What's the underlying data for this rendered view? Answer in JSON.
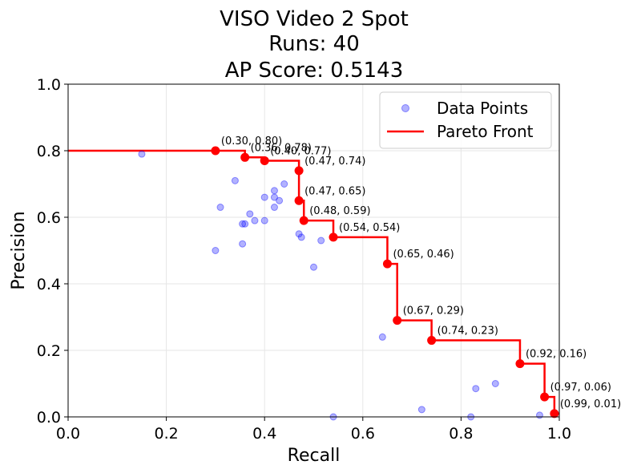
{
  "chart_data": {
    "type": "scatter",
    "title_lines": [
      "VISO Video 2 Spot",
      "Runs: 40",
      "AP Score: 0.5143"
    ],
    "xlabel": "Recall",
    "ylabel": "Precision",
    "xlim": [
      0.0,
      1.0
    ],
    "ylim": [
      0.0,
      1.0
    ],
    "x_ticks": [
      "0.0",
      "0.2",
      "0.4",
      "0.6",
      "0.8",
      "1.0"
    ],
    "y_ticks": [
      "0.0",
      "0.2",
      "0.4",
      "0.6",
      "0.8",
      "1.0"
    ],
    "grid": true,
    "legend_position": "top-right",
    "series": [
      {
        "name": "Data Points",
        "kind": "scatter",
        "color": "#0000ff",
        "points": [
          [
            0.15,
            0.79
          ],
          [
            0.3,
            0.8
          ],
          [
            0.36,
            0.78
          ],
          [
            0.4,
            0.77
          ],
          [
            0.47,
            0.74
          ],
          [
            0.34,
            0.71
          ],
          [
            0.44,
            0.7
          ],
          [
            0.42,
            0.68
          ],
          [
            0.4,
            0.66
          ],
          [
            0.42,
            0.66
          ],
          [
            0.43,
            0.65
          ],
          [
            0.47,
            0.65
          ],
          [
            0.31,
            0.63
          ],
          [
            0.42,
            0.63
          ],
          [
            0.37,
            0.61
          ],
          [
            0.48,
            0.59
          ],
          [
            0.38,
            0.59
          ],
          [
            0.4,
            0.59
          ],
          [
            0.36,
            0.58
          ],
          [
            0.355,
            0.58
          ],
          [
            0.47,
            0.55
          ],
          [
            0.475,
            0.54
          ],
          [
            0.54,
            0.54
          ],
          [
            0.515,
            0.53
          ],
          [
            0.355,
            0.52
          ],
          [
            0.3,
            0.5
          ],
          [
            0.65,
            0.46
          ],
          [
            0.5,
            0.45
          ],
          [
            0.67,
            0.29
          ],
          [
            0.64,
            0.24
          ],
          [
            0.74,
            0.23
          ],
          [
            0.92,
            0.16
          ],
          [
            0.87,
            0.1
          ],
          [
            0.83,
            0.085
          ],
          [
            0.97,
            0.06
          ],
          [
            0.72,
            0.022
          ],
          [
            0.96,
            0.005
          ],
          [
            0.99,
            0.01
          ],
          [
            0.54,
            0.0
          ],
          [
            0.82,
            0.0
          ]
        ]
      },
      {
        "name": "Pareto Front",
        "kind": "step",
        "color": "#ff0000",
        "points": [
          [
            0.3,
            0.8
          ],
          [
            0.36,
            0.78
          ],
          [
            0.4,
            0.77
          ],
          [
            0.47,
            0.74
          ],
          [
            0.47,
            0.65
          ],
          [
            0.48,
            0.59
          ],
          [
            0.54,
            0.54
          ],
          [
            0.65,
            0.46
          ],
          [
            0.67,
            0.29
          ],
          [
            0.74,
            0.23
          ],
          [
            0.92,
            0.16
          ],
          [
            0.97,
            0.06
          ],
          [
            0.99,
            0.01
          ]
        ],
        "labels": [
          "(0.30, 0.80)",
          "(0.36, 0.78)",
          "(0.40, 0.77)",
          "(0.47, 0.74)",
          "(0.47, 0.65)",
          "(0.48, 0.59)",
          "(0.54, 0.54)",
          "(0.65, 0.46)",
          "(0.67, 0.29)",
          "(0.74, 0.23)",
          "(0.92, 0.16)",
          "(0.97, 0.06)",
          "(0.99, 0.01)"
        ]
      }
    ]
  }
}
